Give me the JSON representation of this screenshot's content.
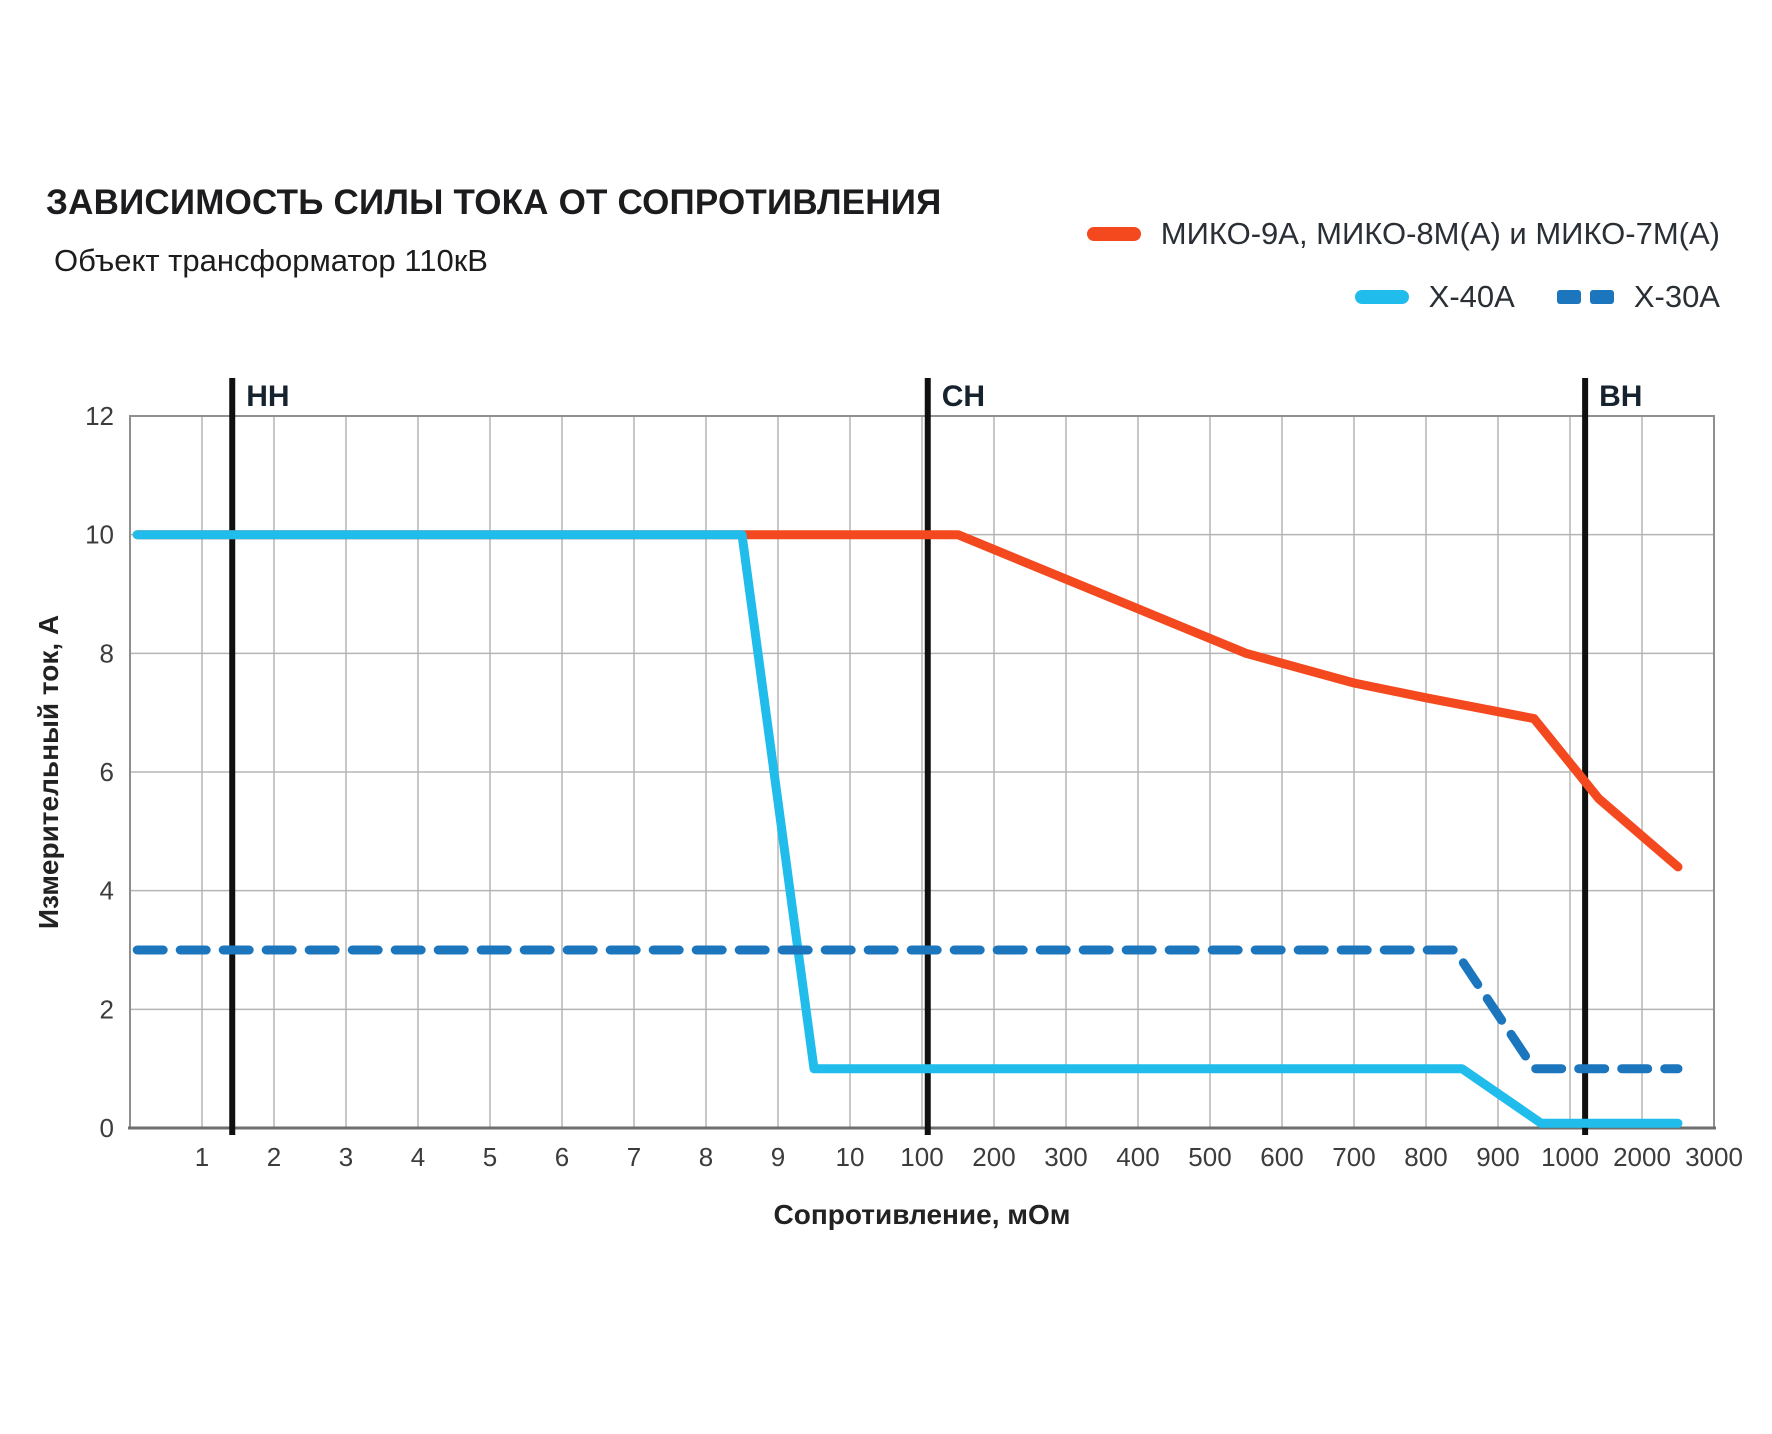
{
  "header": {
    "title": "ЗАВИСИМОСТЬ СИЛЫ ТОКА ОТ СОПРОТИВЛЕНИЯ",
    "subtitle": "Объект трансформатор 110кВ"
  },
  "legend": {
    "items": [
      {
        "label": "МИКО-9А, МИКО-8М(А) и МИКО-7М(А)",
        "color": "#f4491f",
        "style": "solid"
      },
      {
        "label": "X-40A",
        "color": "#1fbcec",
        "style": "solid"
      },
      {
        "label": "X-30A",
        "color": "#1b76bd",
        "style": "dashed"
      }
    ]
  },
  "chart_data": {
    "type": "line",
    "title": "ЗАВИСИМОСТЬ СИЛЫ ТОКА ОТ СОПРОТИВЛЕНИЯ",
    "subtitle": "Объект трансформатор 110кВ",
    "xlabel": "Сопротивление, мОм",
    "ylabel": "Измерительный ток, А",
    "x_ticks": [
      1,
      2,
      3,
      4,
      5,
      6,
      7,
      8,
      9,
      10,
      100,
      200,
      300,
      400,
      500,
      600,
      700,
      800,
      900,
      1000,
      2000,
      3000
    ],
    "y_ticks": [
      0,
      2,
      4,
      6,
      8,
      10,
      12
    ],
    "ylim": [
      0,
      12
    ],
    "x_scale_note": "segmented linear: 1-10 per unit, 100-1000 per 100, 1000-3000 per 1000",
    "grid": true,
    "legend_position": "top-right",
    "markers": [
      {
        "label": "НН",
        "x": 1.42
      },
      {
        "label": "СН",
        "x": 108
      },
      {
        "label": "ВН",
        "x": 1210
      }
    ],
    "series": [
      {
        "name": "МИКО-9А, МИКО-8М(А) и МИКО-7М(А)",
        "color": "#f4491f",
        "dash": false,
        "points": [
          [
            0.1,
            10
          ],
          [
            150,
            10
          ],
          [
            550,
            8
          ],
          [
            700,
            7.5
          ],
          [
            800,
            7.25
          ],
          [
            950,
            6.9
          ],
          [
            1400,
            5.55
          ],
          [
            2500,
            4.4
          ]
        ]
      },
      {
        "name": "X-40A",
        "color": "#1fbcec",
        "dash": false,
        "points": [
          [
            0.1,
            10
          ],
          [
            8.5,
            10
          ],
          [
            9.5,
            1
          ],
          [
            850,
            1
          ],
          [
            960,
            0.08
          ],
          [
            2500,
            0.08
          ]
        ]
      },
      {
        "name": "X-30A",
        "color": "#1b76bd",
        "dash": true,
        "points": [
          [
            0.1,
            3
          ],
          [
            840,
            3
          ],
          [
            950,
            1
          ],
          [
            2500,
            1
          ]
        ]
      }
    ]
  }
}
